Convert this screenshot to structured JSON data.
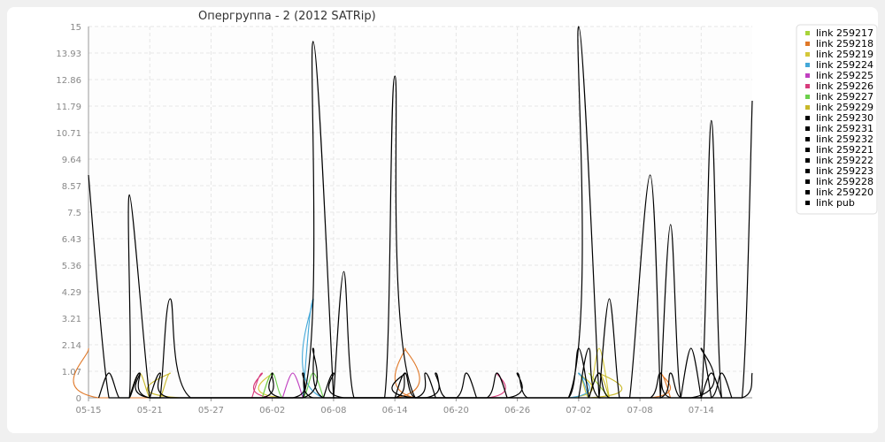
{
  "colors": {
    "background": "#f0f0f0",
    "panel": "#ffffff",
    "grid": "#e6e6e6",
    "axis": "#999999",
    "tick_text": "#888888"
  },
  "chart_data": {
    "type": "line",
    "title": "Опергруппа - 2 (2012 SATRip)",
    "xlabel": "",
    "ylabel": "",
    "x_tick_labels": [
      "05-15",
      "05-21",
      "05-27",
      "06-02",
      "06-08",
      "06-14",
      "06-20",
      "06-26",
      "07-02",
      "07-08",
      "07-14"
    ],
    "y_tick_labels": [
      "0",
      "1.07",
      "2.14",
      "3.21",
      "4.29",
      "5.36",
      "6.43",
      "7.5",
      "8.57",
      "9.64",
      "10.71",
      "11.79",
      "12.86",
      "13.93",
      "15"
    ],
    "ylim": [
      0,
      15
    ],
    "grid": true,
    "legend_position": "top-right",
    "x_range_days": [
      0,
      65
    ],
    "series": [
      {
        "name": "link 259217",
        "color": "#a8d43a",
        "points": [
          [
            49,
            1
          ],
          [
            51,
            0
          ]
        ]
      },
      {
        "name": "link 259218",
        "color": "#e07828",
        "points": [
          [
            0,
            2
          ],
          [
            1,
            0
          ],
          [
            30,
            0
          ],
          [
            31,
            2
          ],
          [
            32,
            0
          ],
          [
            55,
            0
          ],
          [
            56,
            1
          ],
          [
            57,
            0
          ]
        ]
      },
      {
        "name": "link 259219",
        "color": "#d4c83a",
        "points": [
          [
            17,
            0
          ],
          [
            18,
            1
          ],
          [
            19,
            0
          ],
          [
            47,
            0
          ],
          [
            48,
            1
          ],
          [
            49,
            0
          ],
          [
            50,
            2
          ],
          [
            51,
            0
          ]
        ]
      },
      {
        "name": "link 259224",
        "color": "#44a8d8",
        "points": [
          [
            21,
            0
          ],
          [
            22,
            4
          ],
          [
            23,
            0
          ],
          [
            47,
            0
          ],
          [
            48,
            1
          ],
          [
            49,
            0
          ]
        ]
      },
      {
        "name": "link 259225",
        "color": "#c040c0",
        "points": [
          [
            19,
            0
          ],
          [
            20,
            1
          ],
          [
            21,
            0
          ]
        ]
      },
      {
        "name": "link 259226",
        "color": "#d83c7c",
        "points": [
          [
            16,
            0
          ],
          [
            17,
            1
          ],
          [
            18,
            0
          ],
          [
            39,
            0
          ],
          [
            40,
            1
          ],
          [
            41,
            0
          ]
        ]
      },
      {
        "name": "link 259227",
        "color": "#6cd04c",
        "points": [
          [
            17,
            0
          ],
          [
            18,
            1
          ],
          [
            19,
            0
          ],
          [
            21,
            0
          ],
          [
            22,
            1
          ],
          [
            23,
            0
          ]
        ]
      },
      {
        "name": "link 259229",
        "color": "#c8b828",
        "points": [
          [
            4,
            0
          ],
          [
            5,
            1
          ],
          [
            6,
            0
          ],
          [
            7,
            0
          ],
          [
            8,
            1
          ],
          [
            9,
            0
          ],
          [
            49,
            0
          ],
          [
            50,
            1
          ],
          [
            51,
            0
          ]
        ]
      },
      {
        "name": "link 259230",
        "color": "#000000",
        "points": [
          [
            1,
            0
          ],
          [
            2,
            1
          ],
          [
            3,
            0
          ],
          [
            4,
            0
          ],
          [
            5,
            1
          ],
          [
            6,
            0
          ],
          [
            21,
            0
          ],
          [
            22,
            2
          ],
          [
            23,
            0
          ],
          [
            32,
            0
          ],
          [
            33,
            1
          ],
          [
            34,
            0
          ]
        ]
      },
      {
        "name": "link 259231",
        "color": "#000000",
        "points": [
          [
            6,
            0
          ],
          [
            7,
            1
          ],
          [
            8,
            0
          ],
          [
            20,
            0
          ],
          [
            21,
            1
          ],
          [
            22,
            0
          ],
          [
            30,
            0
          ],
          [
            31,
            1
          ],
          [
            32,
            0
          ],
          [
            36,
            0
          ],
          [
            37,
            1
          ],
          [
            38,
            0
          ]
        ]
      },
      {
        "name": "link 259232",
        "color": "#000000",
        "points": [
          [
            23,
            0
          ],
          [
            24,
            1
          ],
          [
            25,
            0
          ],
          [
            41,
            0
          ],
          [
            42,
            1
          ],
          [
            43,
            0
          ],
          [
            47,
            0
          ],
          [
            48,
            2
          ],
          [
            49,
            0
          ]
        ]
      },
      {
        "name": "link 259221",
        "color": "#000000",
        "points": [
          [
            4,
            0
          ],
          [
            5,
            1
          ],
          [
            6,
            0
          ],
          [
            17,
            0
          ],
          [
            18,
            1
          ],
          [
            19,
            0
          ],
          [
            33,
            0
          ],
          [
            34,
            1
          ],
          [
            35,
            0
          ],
          [
            39,
            0
          ],
          [
            40,
            1
          ],
          [
            41,
            0
          ]
        ]
      },
      {
        "name": "link 259222",
        "color": "#000000",
        "points": [
          [
            48,
            0
          ],
          [
            49,
            2
          ],
          [
            50,
            0
          ],
          [
            56,
            0
          ],
          [
            57,
            1
          ],
          [
            58,
            0
          ],
          [
            61,
            0
          ],
          [
            62,
            1
          ],
          [
            63,
            0
          ]
        ]
      },
      {
        "name": "link 259223",
        "color": "#000000",
        "points": [
          [
            49,
            0
          ],
          [
            50,
            1
          ],
          [
            51,
            0
          ],
          [
            55,
            0
          ],
          [
            56,
            1
          ],
          [
            57,
            0
          ],
          [
            64,
            0
          ],
          [
            65,
            1
          ]
        ]
      },
      {
        "name": "link 259228",
        "color": "#000000",
        "points": [
          [
            30,
            0
          ],
          [
            31,
            1
          ],
          [
            32,
            0
          ],
          [
            59,
            0
          ],
          [
            60,
            2
          ],
          [
            61,
            0
          ]
        ]
      },
      {
        "name": "link 259220",
        "color": "#000000",
        "points": [
          [
            58,
            0
          ],
          [
            59,
            2
          ],
          [
            60,
            0
          ],
          [
            60,
            0
          ],
          [
            61,
            1
          ],
          [
            62,
            0
          ]
        ]
      },
      {
        "name": "link pub",
        "color": "#000000",
        "points": [
          [
            0,
            9
          ],
          [
            2,
            0
          ],
          [
            4,
            0
          ],
          [
            4,
            8.2
          ],
          [
            6,
            0
          ],
          [
            7,
            0
          ],
          [
            8,
            4
          ],
          [
            10,
            0
          ],
          [
            21,
            0
          ],
          [
            22,
            14.4
          ],
          [
            24,
            0
          ],
          [
            24,
            0
          ],
          [
            25,
            5.1
          ],
          [
            26,
            0
          ],
          [
            29,
            0
          ],
          [
            30,
            13
          ],
          [
            32,
            0
          ],
          [
            47,
            0
          ],
          [
            48,
            15
          ],
          [
            50,
            0
          ],
          [
            50,
            0
          ],
          [
            51,
            4
          ],
          [
            52,
            0
          ],
          [
            53,
            0
          ],
          [
            55,
            9
          ],
          [
            56,
            0
          ],
          [
            56,
            0
          ],
          [
            57,
            7
          ],
          [
            58,
            0
          ],
          [
            60,
            0
          ],
          [
            61,
            11.2
          ],
          [
            62,
            0
          ],
          [
            64,
            0
          ],
          [
            65,
            12
          ]
        ]
      }
    ]
  }
}
